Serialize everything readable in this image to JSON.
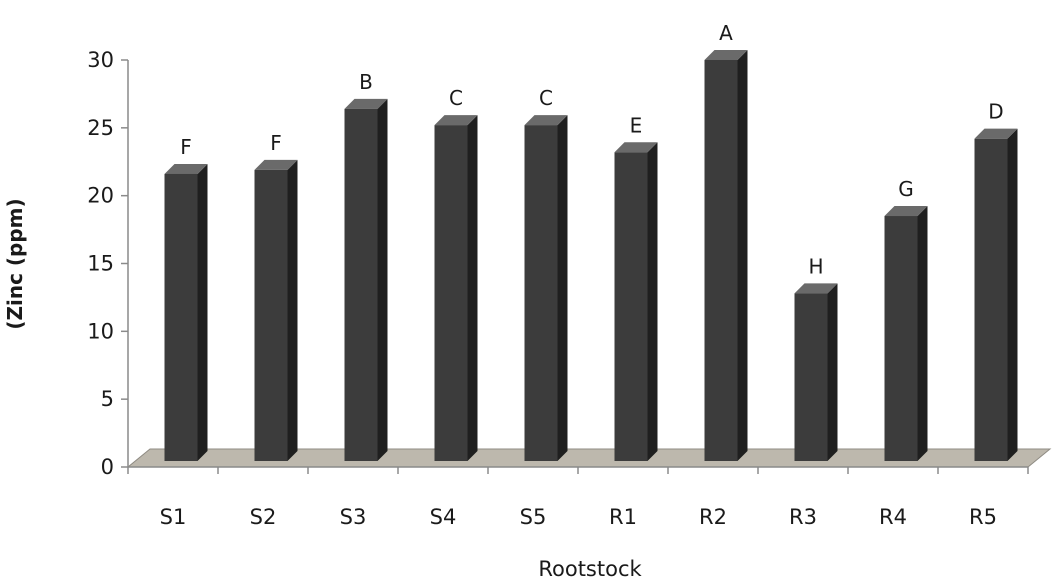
{
  "chart_data": {
    "type": "bar",
    "title": "",
    "xlabel": "Rootstock",
    "ylabel": "(Zinc (ppm)",
    "ylim": [
      0,
      30
    ],
    "yticks": [
      0,
      5,
      10,
      15,
      20,
      25,
      30
    ],
    "categories": [
      "S1",
      "S2",
      "S3",
      "S4",
      "S5",
      "R1",
      "R2",
      "R3",
      "R4",
      "R5"
    ],
    "values": [
      21.6,
      21.9,
      26.4,
      25.2,
      25.2,
      23.2,
      30.0,
      12.8,
      18.5,
      24.2
    ],
    "significance": [
      "F",
      "F",
      "B",
      "C",
      "C",
      "E",
      "A",
      "H",
      "G",
      "D"
    ],
    "grid": false,
    "legend": "none",
    "colors": {
      "bar_front": "#3c3c3c",
      "bar_side": "#1f1f1f",
      "bar_top": "#6a6a6a",
      "floor": "#bdb8ad",
      "floor_edge": "#8f8b83",
      "axis": "#8a8a8a"
    }
  }
}
